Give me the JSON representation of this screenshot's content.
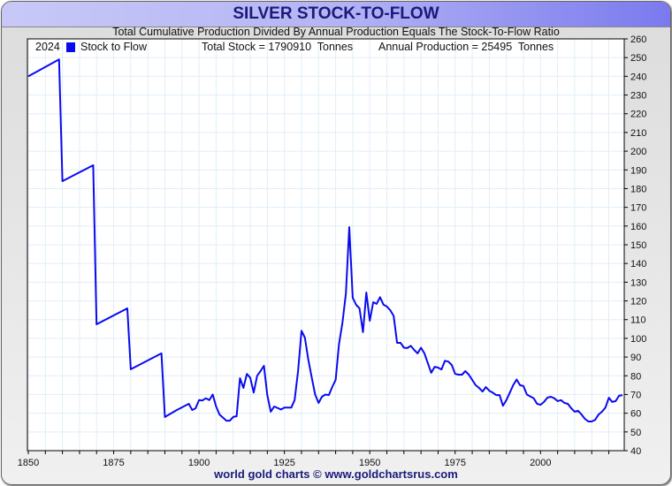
{
  "title": "SILVER STOCK-TO-FLOW",
  "subtitle": "Total Cumulative Production Divided By Annual Production Equals The Stock-To-Flow Ratio",
  "footer": "world gold charts © www.goldchartsrus.com",
  "legend": {
    "year": "2024",
    "series_label": "Stock to Flow",
    "total_stock": "Total Stock = 1790910  Tonnes",
    "annual_production": "Annual Production = 25495  Tonnes"
  },
  "colors": {
    "line": "#0a0af0",
    "grid": "#e0eef8"
  },
  "chart_data": {
    "type": "line",
    "title": "SILVER STOCK-TO-FLOW",
    "xlabel": "",
    "ylabel": "",
    "xlim": [
      1850,
      2024
    ],
    "ylim": [
      40,
      260
    ],
    "x_ticks": [
      1850,
      1875,
      1900,
      1925,
      1950,
      1975,
      2000
    ],
    "y_ticks": [
      40,
      50,
      60,
      70,
      80,
      90,
      100,
      110,
      120,
      130,
      140,
      150,
      160,
      170,
      180,
      190,
      200,
      210,
      220,
      230,
      240,
      250,
      260
    ],
    "grid": true,
    "legend_position": "top-left",
    "series": [
      {
        "name": "Stock to Flow",
        "points": [
          [
            1850,
            240
          ],
          [
            1859,
            249
          ],
          [
            1860,
            184
          ],
          [
            1869,
            192.5
          ],
          [
            1870,
            107.5
          ],
          [
            1879,
            116
          ],
          [
            1880,
            83.5
          ],
          [
            1889,
            92
          ],
          [
            1890,
            58
          ],
          [
            1893.5,
            61.7
          ],
          [
            1897,
            65
          ],
          [
            1898,
            61.7
          ],
          [
            1899,
            62.6
          ],
          [
            1900,
            67
          ],
          [
            1901,
            66.8
          ],
          [
            1902,
            68
          ],
          [
            1903,
            67
          ],
          [
            1904,
            70
          ],
          [
            1905,
            63.6
          ],
          [
            1906,
            59.3
          ],
          [
            1908,
            56
          ],
          [
            1909,
            56
          ],
          [
            1910,
            58
          ],
          [
            1911,
            58.4
          ],
          [
            1912,
            78.7
          ],
          [
            1913,
            73.5
          ],
          [
            1914,
            81
          ],
          [
            1915,
            79
          ],
          [
            1916,
            71
          ],
          [
            1917,
            80
          ],
          [
            1918,
            82.5
          ],
          [
            1919,
            85.3
          ],
          [
            1920,
            69.7
          ],
          [
            1921,
            60.8
          ],
          [
            1922,
            63.6
          ],
          [
            1924,
            62
          ],
          [
            1925,
            63
          ],
          [
            1927,
            63
          ],
          [
            1928,
            67
          ],
          [
            1929,
            82.5
          ],
          [
            1930,
            104
          ],
          [
            1931,
            100.4
          ],
          [
            1932,
            88.6
          ],
          [
            1933,
            79
          ],
          [
            1934,
            70
          ],
          [
            1935,
            65.5
          ],
          [
            1936,
            68.8
          ],
          [
            1937,
            70
          ],
          [
            1938,
            69.7
          ],
          [
            1939,
            74
          ],
          [
            1940,
            77.8
          ],
          [
            1941,
            97
          ],
          [
            1942,
            108.4
          ],
          [
            1943,
            124
          ],
          [
            1944,
            159.4
          ],
          [
            1945,
            121.7
          ],
          [
            1946,
            117.9
          ],
          [
            1947,
            116
          ],
          [
            1948,
            103.3
          ],
          [
            1949,
            124.5
          ],
          [
            1950,
            109.4
          ],
          [
            1951,
            119.3
          ],
          [
            1952,
            118.4
          ],
          [
            1953,
            122
          ],
          [
            1954,
            118
          ],
          [
            1955,
            117
          ],
          [
            1956,
            115
          ],
          [
            1957,
            112
          ],
          [
            1958,
            97.6
          ],
          [
            1959,
            97.6
          ],
          [
            1960,
            95
          ],
          [
            1961,
            94.8
          ],
          [
            1962,
            96
          ],
          [
            1963,
            93.8
          ],
          [
            1964,
            92
          ],
          [
            1965,
            95
          ],
          [
            1966,
            92
          ],
          [
            1967,
            86.7
          ],
          [
            1968,
            81.6
          ],
          [
            1969,
            84.8
          ],
          [
            1970,
            84.4
          ],
          [
            1971,
            83.4
          ],
          [
            1972,
            88
          ],
          [
            1973,
            87.6
          ],
          [
            1974,
            85.8
          ],
          [
            1975,
            81
          ],
          [
            1976,
            80.6
          ],
          [
            1977,
            80.6
          ],
          [
            1978,
            82.5
          ],
          [
            1979,
            80.6
          ],
          [
            1980,
            77.8
          ],
          [
            1981,
            75
          ],
          [
            1982,
            73.5
          ],
          [
            1983,
            71.6
          ],
          [
            1984,
            74
          ],
          [
            1985,
            72
          ],
          [
            1986,
            71
          ],
          [
            1987,
            69.7
          ],
          [
            1988,
            69.7
          ],
          [
            1989,
            64
          ],
          [
            1990,
            67
          ],
          [
            1991,
            71
          ],
          [
            1992,
            75
          ],
          [
            1993,
            78
          ],
          [
            1994,
            75
          ],
          [
            1995,
            74.5
          ],
          [
            1996,
            70
          ],
          [
            1997,
            69
          ],
          [
            1998,
            68
          ],
          [
            1999,
            65
          ],
          [
            2000,
            64.5
          ],
          [
            2001,
            66
          ],
          [
            2002,
            68.3
          ],
          [
            2003,
            68.8
          ],
          [
            2004,
            68
          ],
          [
            2005,
            66.5
          ],
          [
            2006,
            67
          ],
          [
            2007,
            65.5
          ],
          [
            2008,
            65
          ],
          [
            2009,
            62.6
          ],
          [
            2010,
            60.8
          ],
          [
            2011,
            61.3
          ],
          [
            2012,
            59.3
          ],
          [
            2013,
            57
          ],
          [
            2014,
            55.6
          ],
          [
            2015,
            55.6
          ],
          [
            2016,
            56.5
          ],
          [
            2017,
            59.3
          ],
          [
            2018,
            60.8
          ],
          [
            2019,
            63
          ],
          [
            2020,
            68.3
          ],
          [
            2021,
            66
          ],
          [
            2022,
            66.5
          ],
          [
            2023,
            69.3
          ],
          [
            2024,
            69.7
          ]
        ]
      }
    ]
  }
}
